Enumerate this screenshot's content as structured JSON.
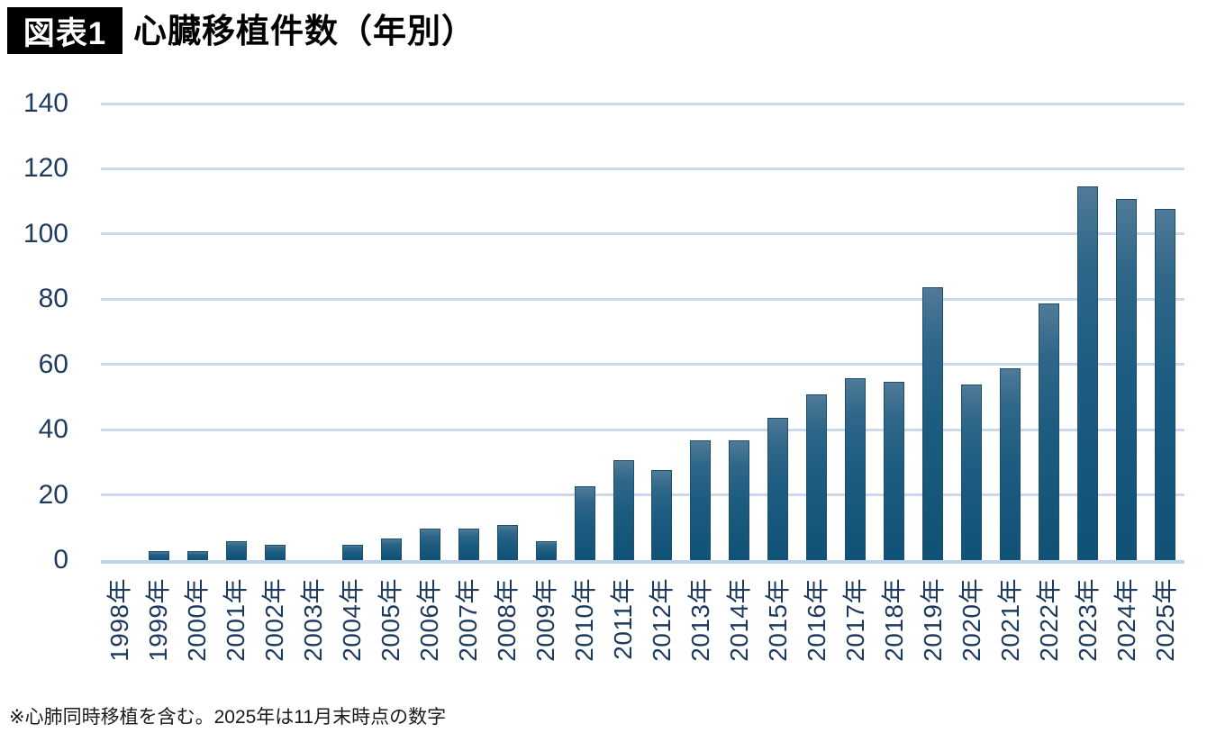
{
  "header": {
    "badge": "図表1",
    "title": "心臓移植件数（年別）"
  },
  "footnote": "※心肺同時移植を含む。2025年は11月末時点の数字",
  "colors": {
    "bar_gradient_top": "#507a98",
    "bar_gradient_upper": "#2f6789",
    "bar_gradient_mid": "#1c5c80",
    "bar_gradient_bottom": "#0f5276",
    "bar_border": "#1b4f6b",
    "gridline": "#ccd8ec",
    "baseline": "#bed3ea",
    "axis_text": "#1e3a5f"
  },
  "chart_data": {
    "type": "bar",
    "title": "心臓移植件数（年別）",
    "categories": [
      "1998年",
      "1999年",
      "2000年",
      "2001年",
      "2002年",
      "2003年",
      "2004年",
      "2005年",
      "2006年",
      "2007年",
      "2008年",
      "2009年",
      "2010年",
      "2011年",
      "2012年",
      "2013年",
      "2014年",
      "2015年",
      "2016年",
      "2017年",
      "2018年",
      "2019年",
      "2020年",
      "2021年",
      "2022年",
      "2023年",
      "2024年",
      "2025年"
    ],
    "values": [
      0,
      3,
      3,
      6,
      5,
      0,
      5,
      7,
      10,
      10,
      11,
      6,
      23,
      31,
      28,
      37,
      37,
      44,
      51,
      56,
      55,
      84,
      54,
      59,
      79,
      115,
      111,
      108
    ],
    "xlabel": "",
    "ylabel": "",
    "ylim": [
      0,
      140
    ],
    "ytick_interval": 20,
    "yticks": [
      0,
      20,
      40,
      60,
      80,
      100,
      120,
      140
    ],
    "grid": true,
    "legend": false
  }
}
